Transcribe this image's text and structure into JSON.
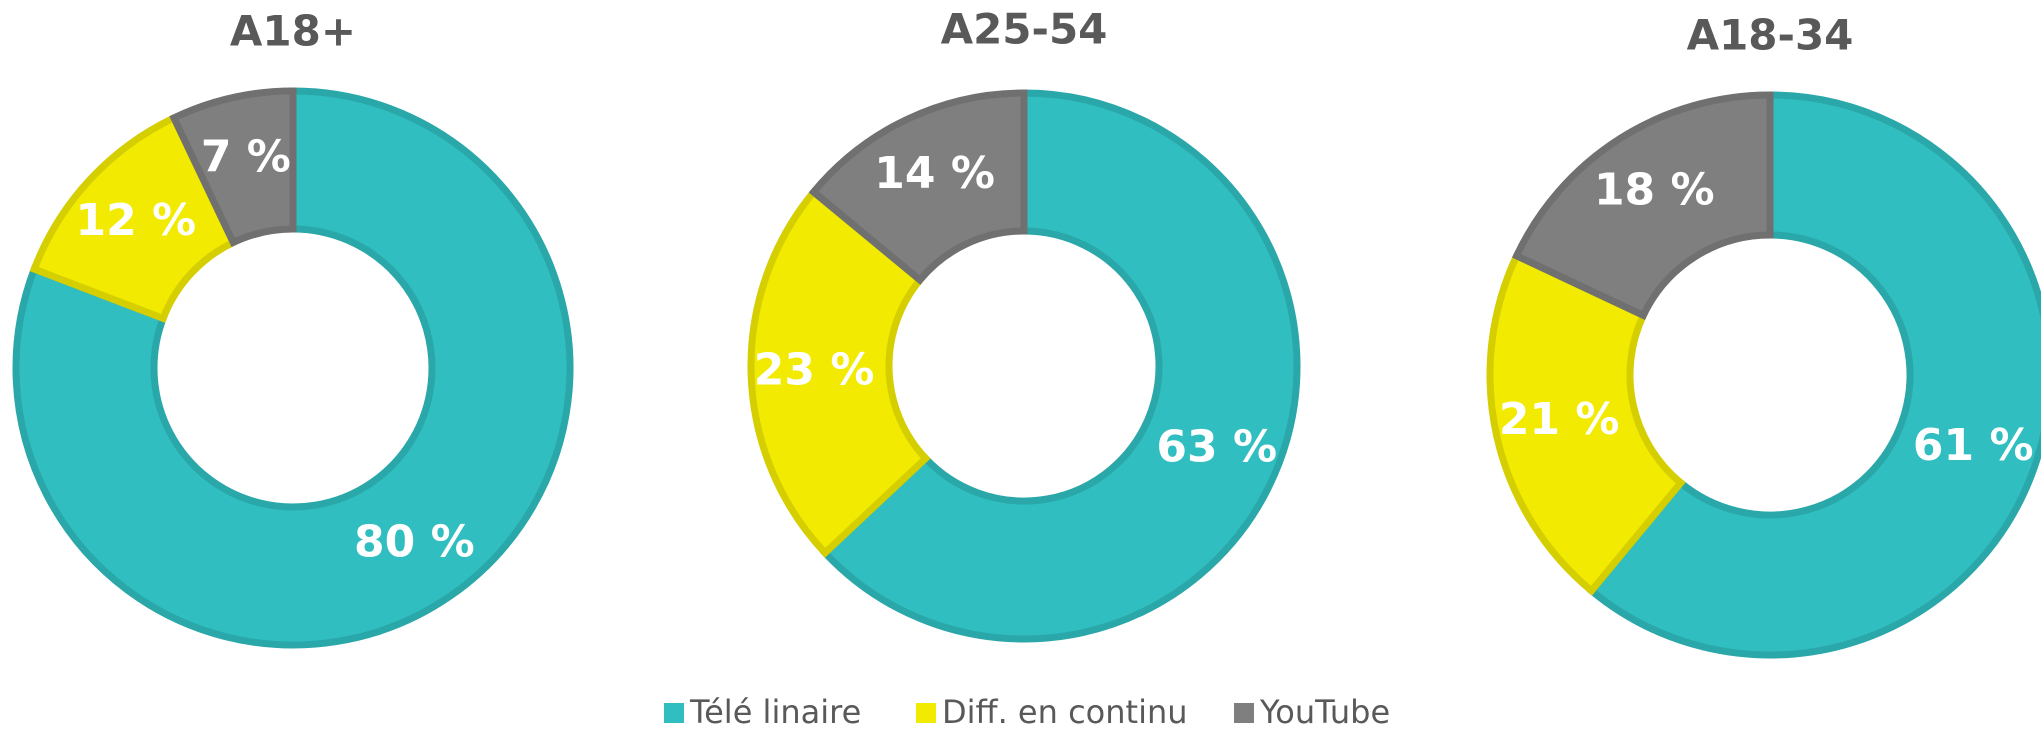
{
  "chart_data": [
    {
      "type": "pie",
      "title": "A18+",
      "categories": [
        "Télé linaire",
        "Diff. en continu",
        "YouTube"
      ],
      "values": [
        80,
        12,
        7
      ],
      "value_labels": [
        "80 %",
        "12 %",
        "7 %"
      ],
      "colors": [
        "#30bec0",
        "#f2ea00",
        "#7f7f7f"
      ]
    },
    {
      "type": "pie",
      "title": "A25-54",
      "categories": [
        "Télé linaire",
        "Diff. en continu",
        "YouTube"
      ],
      "values": [
        63,
        23,
        14
      ],
      "value_labels": [
        "63 %",
        "23 %",
        "14 %"
      ],
      "colors": [
        "#30bec0",
        "#f2ea00",
        "#7f7f7f"
      ]
    },
    {
      "type": "pie",
      "title": "A18-34",
      "categories": [
        "Télé linaire",
        "Diff. en continu",
        "YouTube"
      ],
      "values": [
        61,
        21,
        18
      ],
      "value_labels": [
        "61 %",
        "21 %",
        "18 %"
      ],
      "colors": [
        "#30bec0",
        "#f2ea00",
        "#7f7f7f"
      ]
    }
  ]
}
